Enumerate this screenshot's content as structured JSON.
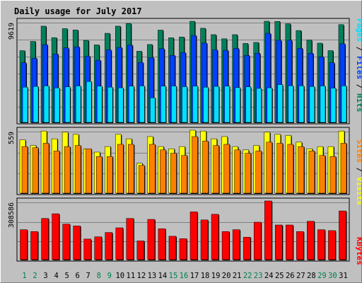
{
  "colors": {
    "frame_bg": "#c0c0c0",
    "title": "#0000ff",
    "weekday": "#000000",
    "weekend": "#00804c",
    "hits": "#00805c",
    "files": "#0040ff",
    "pages": "#00e0ff",
    "visits": "#ffff00",
    "sites": "#ff8000",
    "kbytes": "#ff0000"
  },
  "legend": {
    "pages": "Pages",
    "files": "Files",
    "hits": "Hits",
    "sites": "Sites",
    "visits": "Visits",
    "kbytes": "KBytes",
    "sep": " / "
  },
  "chart_data": {
    "type": "bar",
    "title": "Daily usage for July 2017",
    "categories": [
      "1",
      "2",
      "3",
      "4",
      "5",
      "6",
      "7",
      "8",
      "9",
      "10",
      "11",
      "12",
      "13",
      "14",
      "15",
      "16",
      "17",
      "18",
      "19",
      "20",
      "21",
      "22",
      "23",
      "24",
      "25",
      "26",
      "27",
      "28",
      "29",
      "30",
      "31"
    ],
    "weekend_days": [
      "1",
      "2",
      "8",
      "9",
      "15",
      "16",
      "22",
      "23",
      "29",
      "30"
    ],
    "panels": [
      {
        "name": "hits-files-pages",
        "ymax": 9619,
        "ymax_label": "9619",
        "series": [
          {
            "name": "Hits",
            "key": "hits",
            "values": [
              6930,
              7820,
              9290,
              8180,
              9050,
              8920,
              7920,
              7480,
              8600,
              9290,
              9550,
              6870,
              7520,
              8910,
              8170,
              8240,
              9760,
              9090,
              8470,
              8070,
              8470,
              7620,
              7720,
              10120,
              9750,
              9520,
              8870,
              7950,
              7650,
              6930,
              9440
            ]
          },
          {
            "name": "Files",
            "key": "files",
            "values": [
              5760,
              6190,
              7510,
              6600,
              7190,
              7300,
              6390,
              6000,
              7000,
              7240,
              7470,
              5790,
              6250,
              7110,
              6470,
              6740,
              8390,
              7660,
              7000,
              6960,
              7140,
              6470,
              6680,
              8600,
              7930,
              7930,
              7150,
              6680,
              6330,
              5760,
              7590
            ]
          },
          {
            "name": "Pages",
            "key": "pages",
            "values": [
              3400,
              3470,
              3520,
              3330,
              3430,
              3520,
              3950,
              3500,
              3400,
              3340,
              3500,
              3520,
              2370,
              3500,
              3510,
              3450,
              3500,
              3400,
              3480,
              3500,
              3370,
              3430,
              3280,
              3340,
              3650,
              3540,
              3530,
              3460,
              3520,
              3310,
              3530
            ]
          }
        ]
      },
      {
        "name": "visits-sites",
        "ymax": 559,
        "ymax_label": "559",
        "series": [
          {
            "name": "Visits",
            "key": "visits",
            "values": [
              480,
              430,
              560,
              490,
              550,
              530,
              400,
              370,
              420,
              530,
              490,
              270,
              510,
              420,
              400,
              420,
              590,
              560,
              490,
              510,
              420,
              390,
              430,
              550,
              530,
              520,
              460,
              400,
              420,
              420,
              560
            ]
          },
          {
            "name": "Sites",
            "key": "sites",
            "values": [
              420,
              410,
              450,
              380,
              420,
              430,
              400,
              330,
              330,
              440,
              440,
              250,
              440,
              390,
              360,
              340,
              510,
              470,
              430,
              440,
              390,
              360,
              380,
              460,
              450,
              440,
              420,
              380,
              340,
              330,
              450
            ]
          }
        ]
      },
      {
        "name": "kbytes",
        "ymax": 308586,
        "ymax_label": "308586",
        "series": [
          {
            "name": "KBytes",
            "key": "kbytes",
            "values": [
              160000,
              150000,
              220000,
              245000,
              190000,
              180000,
              110000,
              122000,
              145000,
              170000,
              220000,
              100000,
              215000,
              165000,
              125000,
              112000,
              255000,
              212000,
              242000,
              150000,
              160000,
              120000,
              200000,
              330000,
              185000,
              185000,
              150000,
              205000,
              160000,
              155000,
              260000
            ]
          }
        ]
      }
    ],
    "grid": true,
    "legend_placement": "right-vertical"
  }
}
